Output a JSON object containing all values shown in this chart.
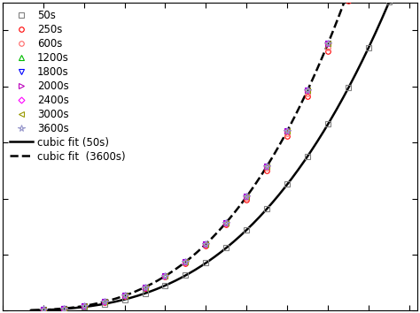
{
  "background_color": "#ffffff",
  "series": [
    {
      "label": "50s",
      "color": "#808080",
      "marker": "s",
      "mfc": "none"
    },
    {
      "label": "250s",
      "color": "#ff0000",
      "marker": "o",
      "mfc": "none"
    },
    {
      "label": "600s",
      "color": "#ff6666",
      "marker": "o",
      "mfc": "none"
    },
    {
      "label": "1200s",
      "color": "#00bb00",
      "marker": "^",
      "mfc": "none"
    },
    {
      "label": "1800s",
      "color": "#0000ff",
      "marker": "v",
      "mfc": "none"
    },
    {
      "label": "2000s",
      "color": "#bb00bb",
      "marker": ">",
      "mfc": "none"
    },
    {
      "label": "2400s",
      "color": "#ff00ff",
      "marker": "D",
      "mfc": "none"
    },
    {
      "label": "3000s",
      "color": "#999900",
      "marker": "<",
      "mfc": "none"
    },
    {
      "label": "3600s",
      "color": "#9999cc",
      "marker": "*",
      "mfc": "none"
    }
  ],
  "fit_solid_label": "cubic fit (50s)",
  "fit_dashed_label": "cubic fit  (3600s)",
  "legend_fontsize": 8.5,
  "marker_size": 4.0,
  "star_size": 5.5,
  "diamond_size": 3.5
}
